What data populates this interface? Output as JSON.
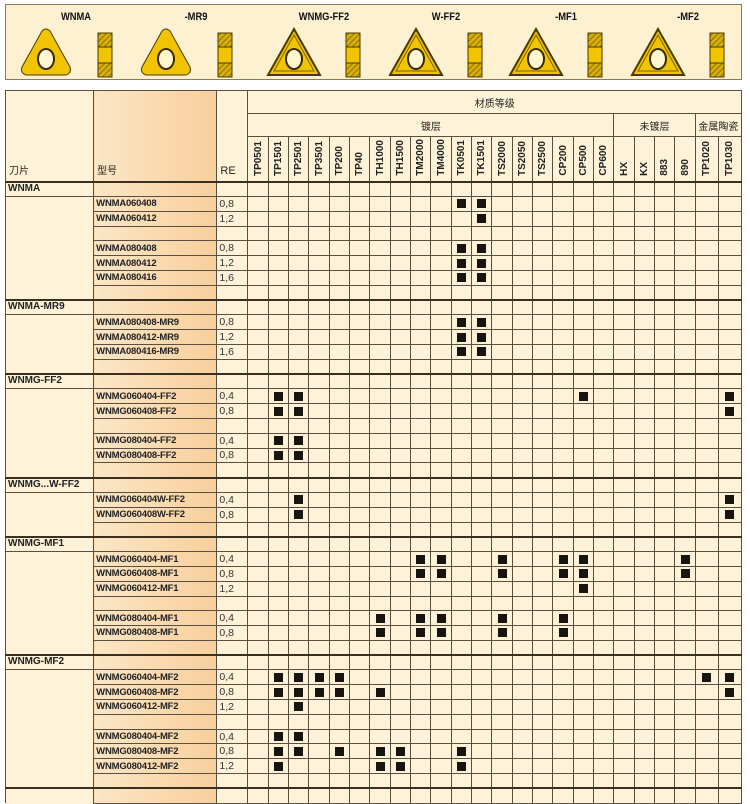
{
  "banner": {
    "inserts": [
      "WNMA",
      "-MR9",
      "WNMG-FF2",
      "W-FF2",
      "-MF1",
      "-MF2"
    ]
  },
  "colors": {
    "cell_bg": "#fef3d8",
    "model_bg": "#f8cf9c",
    "mark": "#181410",
    "insert": "#f0c400"
  },
  "header": {
    "insert_label": "刀片",
    "model_label": "型号",
    "re_label": "RE",
    "material_grade": "材质等级",
    "coated": "镀层",
    "uncoated": "未镀层",
    "cermet": "金属陶瓷"
  },
  "grades": [
    "TP0501",
    "TP1501",
    "TP2501",
    "TP3501",
    "TP200",
    "TP40",
    "TH1000",
    "TH1500",
    "TM2000",
    "TM4000",
    "TK0501",
    "TK1501",
    "TS2000",
    "TS2050",
    "TS2500",
    "CP200",
    "CP500",
    "CP600",
    "HX",
    "KX",
    "883",
    "890",
    "TP1020",
    "TP1030"
  ],
  "groups": [
    {
      "label": "WNMA",
      "blocks": [
        [
          {
            "model": "WNMA060408",
            "re": "0,8",
            "marks": [
              "TK0501",
              "TK1501"
            ]
          },
          {
            "model": "WNMA060412",
            "re": "1,2",
            "marks": [
              "TK1501"
            ]
          }
        ],
        [
          {
            "model": "WNMA080408",
            "re": "0,8",
            "marks": [
              "TK0501",
              "TK1501"
            ]
          },
          {
            "model": "WNMA080412",
            "re": "1,2",
            "marks": [
              "TK0501",
              "TK1501"
            ]
          },
          {
            "model": "WNMA080416",
            "re": "1,6",
            "marks": [
              "TK0501",
              "TK1501"
            ]
          }
        ]
      ]
    },
    {
      "label": "WNMA-MR9",
      "blocks": [
        [
          {
            "model": "WNMA080408-MR9",
            "re": "0,8",
            "marks": [
              "TK0501",
              "TK1501"
            ]
          },
          {
            "model": "WNMA080412-MR9",
            "re": "1,2",
            "marks": [
              "TK0501",
              "TK1501"
            ]
          },
          {
            "model": "WNMA080416-MR9",
            "re": "1,6",
            "marks": [
              "TK0501",
              "TK1501"
            ]
          }
        ]
      ]
    },
    {
      "label": "WNMG-FF2",
      "blocks": [
        [
          {
            "model": "WNMG060404-FF2",
            "re": "0,4",
            "marks": [
              "TP1501",
              "TP2501",
              "CP500",
              "TP1030"
            ]
          },
          {
            "model": "WNMG060408-FF2",
            "re": "0,8",
            "marks": [
              "TP1501",
              "TP2501",
              "TP1030"
            ]
          }
        ],
        [
          {
            "model": "WNMG080404-FF2",
            "re": "0,4",
            "marks": [
              "TP1501",
              "TP2501"
            ]
          },
          {
            "model": "WNMG080408-FF2",
            "re": "0,8",
            "marks": [
              "TP1501",
              "TP2501"
            ]
          }
        ]
      ]
    },
    {
      "label": "WNMG...W-FF2",
      "blocks": [
        [
          {
            "model": "WNMG060404W-FF2",
            "re": "0,4",
            "marks": [
              "TP2501",
              "TP1030"
            ]
          },
          {
            "model": "WNMG060408W-FF2",
            "re": "0,8",
            "marks": [
              "TP2501",
              "TP1030"
            ]
          }
        ]
      ]
    },
    {
      "label": "WNMG-MF1",
      "blocks": [
        [
          {
            "model": "WNMG060404-MF1",
            "re": "0,4",
            "marks": [
              "TM2000",
              "TM4000",
              "TS2000",
              "CP200",
              "CP500",
              "890"
            ]
          },
          {
            "model": "WNMG060408-MF1",
            "re": "0,8",
            "marks": [
              "TM2000",
              "TM4000",
              "TS2000",
              "CP200",
              "CP500",
              "890"
            ]
          },
          {
            "model": "WNMG060412-MF1",
            "re": "1,2",
            "marks": [
              "CP500"
            ]
          }
        ],
        [
          {
            "model": "WNMG080404-MF1",
            "re": "0,4",
            "marks": [
              "TH1000",
              "TM2000",
              "TM4000",
              "TS2000",
              "CP200"
            ]
          },
          {
            "model": "WNMG080408-MF1",
            "re": "0,8",
            "marks": [
              "TH1000",
              "TM2000",
              "TM4000",
              "TS2000",
              "CP200"
            ]
          }
        ]
      ]
    },
    {
      "label": "WNMG-MF2",
      "blocks": [
        [
          {
            "model": "WNMG060404-MF2",
            "re": "0,4",
            "marks": [
              "TP1501",
              "TP2501",
              "TP3501",
              "TP200",
              "TP1020",
              "TP1030"
            ]
          },
          {
            "model": "WNMG060408-MF2",
            "re": "0,8",
            "marks": [
              "TP1501",
              "TP2501",
              "TP3501",
              "TP200",
              "TH1000",
              "TP1030"
            ]
          },
          {
            "model": "WNMG060412-MF2",
            "re": "1,2",
            "marks": [
              "TP2501"
            ]
          }
        ],
        [
          {
            "model": "WNMG080404-MF2",
            "re": "0,4",
            "marks": [
              "TP1501",
              "TP2501"
            ]
          },
          {
            "model": "WNMG080408-MF2",
            "re": "0,8",
            "marks": [
              "TP1501",
              "TP2501",
              "TP200",
              "TH1000",
              "TH1500",
              "TK0501"
            ]
          },
          {
            "model": "WNMG080412-MF2",
            "re": "1,2",
            "marks": [
              "TP1501",
              "TH1000",
              "TH1500",
              "TK0501"
            ]
          }
        ]
      ]
    }
  ]
}
